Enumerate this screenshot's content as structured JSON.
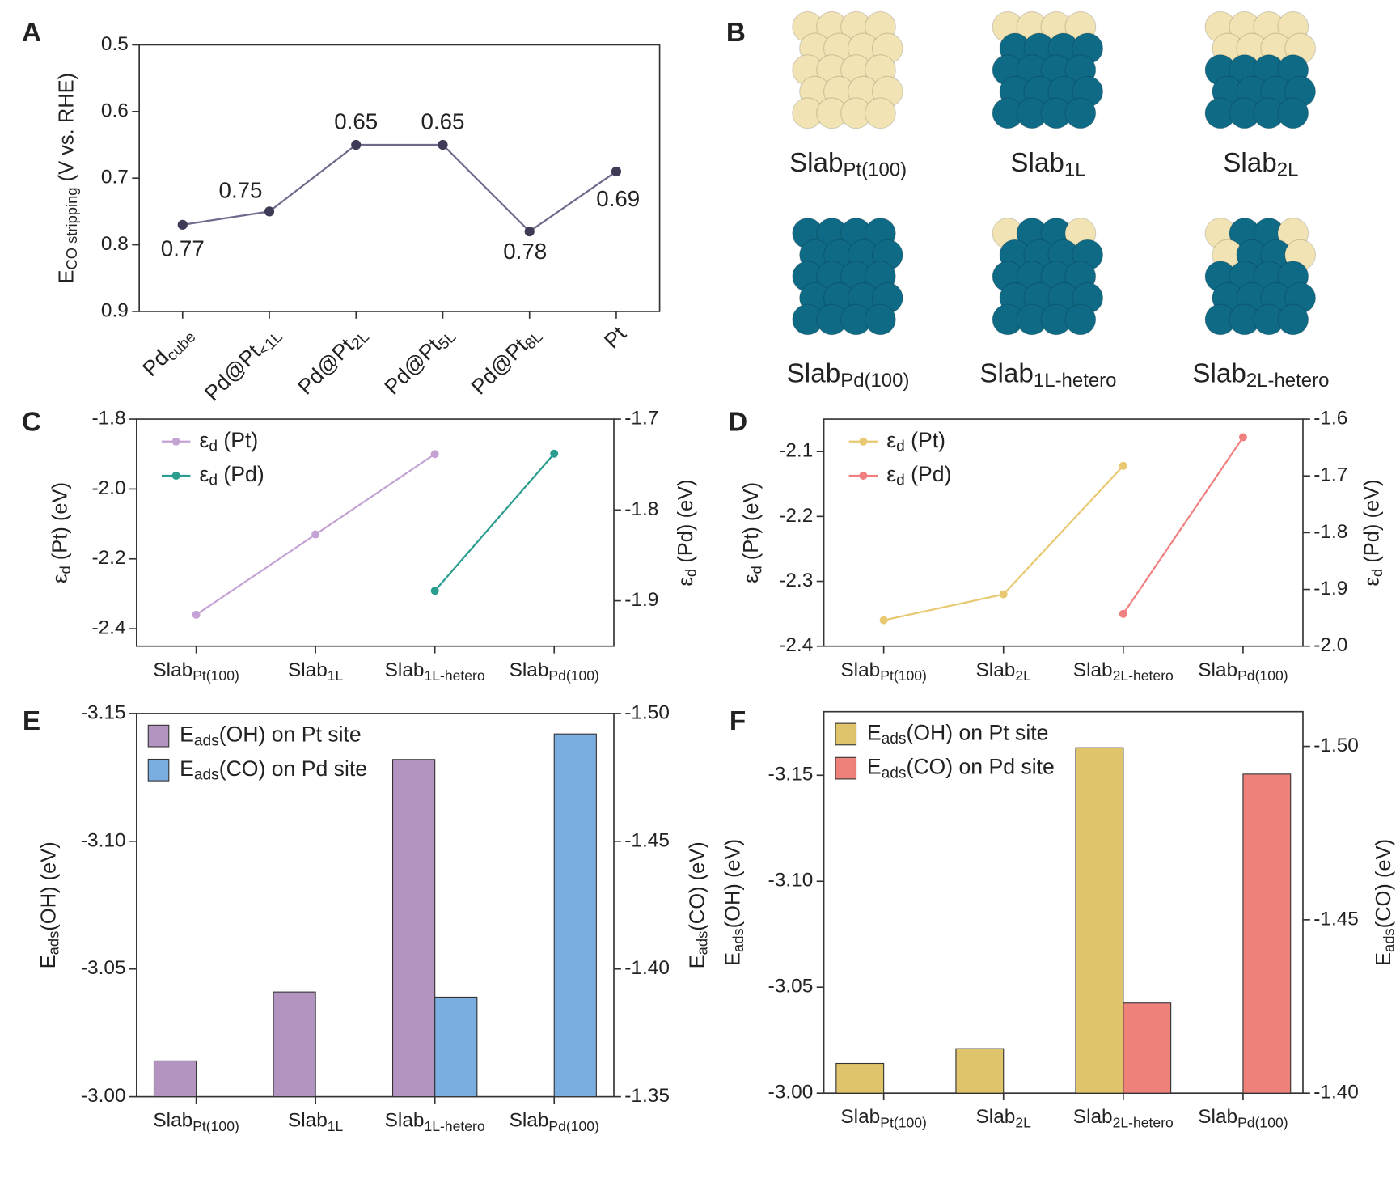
{
  "structures": {
    "panel_label": "B",
    "labels": [
      {
        "base": "Slab",
        "sub": "Pt(100)"
      },
      {
        "base": "Slab",
        "sub": "1L"
      },
      {
        "base": "Slab",
        "sub": "2L"
      },
      {
        "base": "Slab",
        "sub": "Pd(100)"
      },
      {
        "base": "Slab",
        "sub": "1L-hetero"
      },
      {
        "base": "Slab",
        "sub": "2L-hetero"
      }
    ]
  },
  "chart_data": [
    {
      "panel_label": "A",
      "type": "line",
      "categories": [
        {
          "base": "Pd",
          "sub": "cube"
        },
        {
          "base": "Pd@Pt",
          "sub": "<1L"
        },
        {
          "base": "Pd@Pt",
          "sub": "2L"
        },
        {
          "base": "Pd@Pt",
          "sub": "5L"
        },
        {
          "base": "Pd@Pt",
          "sub": "8L"
        },
        "Pt"
      ],
      "values": [
        0.77,
        0.75,
        0.65,
        0.65,
        0.78,
        0.69
      ],
      "color": "#6e6a8c",
      "marker_color": "#3d3b56",
      "data_labels": true,
      "ylabel": {
        "base": "E",
        "sub": "CO stripping",
        "rest": " (V vs. RHE)"
      },
      "ylim": [
        0.9,
        0.5
      ],
      "yticks": [
        0.5,
        0.6,
        0.7,
        0.8,
        0.9
      ]
    },
    {
      "panel_label": "C",
      "type": "line",
      "legend": "upper left",
      "categories": [
        {
          "base": "Slab",
          "sub": "Pt(100)"
        },
        {
          "base": "Slab",
          "sub": "1L"
        },
        {
          "base": "Slab",
          "sub": "1L-hetero"
        },
        {
          "base": "Slab",
          "sub": "Pd(100)"
        }
      ],
      "series": [
        {
          "name": {
            "base": "ε",
            "sub": "d",
            "rest": " (Pt)"
          },
          "color": "#c4a2d4",
          "values": [
            -2.36,
            -2.13,
            -1.9,
            null
          ]
        },
        {
          "name": {
            "base": "ε",
            "sub": "d",
            "rest": " (Pd)"
          },
          "color": "#2a9d8f",
          "axis": "y2",
          "values": [
            null,
            null,
            -1.889,
            -1.738
          ]
        }
      ],
      "ylabel": {
        "base": "ε",
        "sub": "d",
        "rest": " (Pt) (eV)"
      },
      "y2label": {
        "base": "ε",
        "sub": "d",
        "rest": " (Pd) (eV)"
      },
      "ylim": [
        -2.45,
        -1.8
      ],
      "yticks": [
        -2.4,
        -2.2,
        {
          "value": -2,
          "label": "-2.0"
        },
        -1.8
      ],
      "y2lim": [
        -1.95,
        -1.7
      ],
      "y2ticks": [
        -1.9,
        -1.8,
        -1.7
      ]
    },
    {
      "panel_label": "D",
      "type": "line",
      "legend": "upper left",
      "categories": [
        {
          "base": "Slab",
          "sub": "Pt(100)"
        },
        {
          "base": "Slab",
          "sub": "2L"
        },
        {
          "base": "Slab",
          "sub": "2L-hetero"
        },
        {
          "base": "Slab",
          "sub": "Pd(100)"
        }
      ],
      "series": [
        {
          "name": {
            "base": "ε",
            "sub": "d",
            "rest": " (Pt)"
          },
          "color": "#e8c870",
          "values": [
            -2.36,
            -2.32,
            -2.122,
            null
          ]
        },
        {
          "name": {
            "base": "ε",
            "sub": "d",
            "rest": " (Pd)"
          },
          "color": "#f08080",
          "axis": "y2",
          "values": [
            null,
            null,
            -1.943,
            -1.632
          ]
        }
      ],
      "ylabel": {
        "base": "ε",
        "sub": "d",
        "rest": " (Pt) (eV)"
      },
      "y2label": {
        "base": "ε",
        "sub": "d",
        "rest": " (Pd) (eV)"
      },
      "ylim": [
        -2.4,
        -2.05
      ],
      "yticks": [
        -2.4,
        -2.3,
        -2.2,
        -2.1
      ],
      "y2lim": [
        -2.0,
        -1.6
      ],
      "y2ticks": [
        {
          "value": -2,
          "label": "-2.0"
        },
        -1.9,
        -1.8,
        -1.7,
        -1.6
      ]
    },
    {
      "panel_label": "E",
      "type": "bar",
      "legend": "upper left",
      "categories": [
        {
          "base": "Slab",
          "sub": "Pt(100)"
        },
        {
          "base": "Slab",
          "sub": "1L"
        },
        {
          "base": "Slab",
          "sub": "1L-hetero"
        },
        {
          "base": "Slab",
          "sub": "Pd(100)"
        }
      ],
      "series": [
        {
          "name": {
            "base": "E",
            "sub": "ads",
            "rest": "(OH) on Pt site"
          },
          "color": "#b394c0",
          "values": [
            -3.014,
            -3.041,
            -3.132,
            null
          ]
        },
        {
          "name": {
            "base": "E",
            "sub": "ads",
            "rest": "(CO) on Pd site"
          },
          "color": "#7baee0",
          "axis": "y2",
          "values": [
            null,
            null,
            -1.389,
            -1.492
          ]
        }
      ],
      "ylabel": {
        "base": "E",
        "sub": "ads",
        "rest": "(OH) (eV)"
      },
      "y2label": {
        "base": "E",
        "sub": "ads",
        "rest": "(CO) (eV)"
      },
      "ylim": [
        -3.0,
        -3.15
      ],
      "yticks": [
        {
          "value": -3,
          "label": "-3.00"
        },
        -3.05,
        {
          "value": -3.1,
          "label": "-3.10"
        },
        -3.15
      ],
      "y2lim": [
        -1.35,
        -1.5
      ],
      "y2ticks": [
        -1.35,
        {
          "value": -1.4,
          "label": "-1.40"
        },
        -1.45,
        {
          "value": -1.5,
          "label": "-1.50"
        }
      ]
    },
    {
      "panel_label": "F",
      "type": "bar",
      "legend": "upper left",
      "categories": [
        {
          "base": "Slab",
          "sub": "Pt(100)"
        },
        {
          "base": "Slab",
          "sub": "2L"
        },
        {
          "base": "Slab",
          "sub": "2L-hetero"
        },
        {
          "base": "Slab",
          "sub": "Pd(100)"
        }
      ],
      "series": [
        {
          "name": {
            "base": "E",
            "sub": "ads",
            "rest": "(OH) on Pt site"
          },
          "color": "#e0c46c",
          "values": [
            -3.014,
            -3.021,
            -3.163,
            null
          ]
        },
        {
          "name": {
            "base": "E",
            "sub": "ads",
            "rest": "(CO) on Pd site"
          },
          "color": "#ee827a",
          "axis": "y2",
          "values": [
            null,
            null,
            -1.426,
            -1.492
          ]
        }
      ],
      "ylabel": {
        "base": "E",
        "sub": "ads",
        "rest": "(OH) (eV)"
      },
      "y2label": {
        "base": "E",
        "sub": "ads",
        "rest": "(CO) (eV)"
      },
      "ylim": [
        -3.0,
        -3.18
      ],
      "yticks": [
        {
          "value": -3,
          "label": "-3.00"
        },
        -3.05,
        {
          "value": -3.1,
          "label": "-3.10"
        },
        -3.15
      ],
      "y2lim": [
        -1.4,
        -1.51
      ],
      "y2ticks": [
        {
          "value": -1.4,
          "label": "-1.40"
        },
        -1.45,
        {
          "value": -1.5,
          "label": "-1.50"
        }
      ]
    }
  ]
}
